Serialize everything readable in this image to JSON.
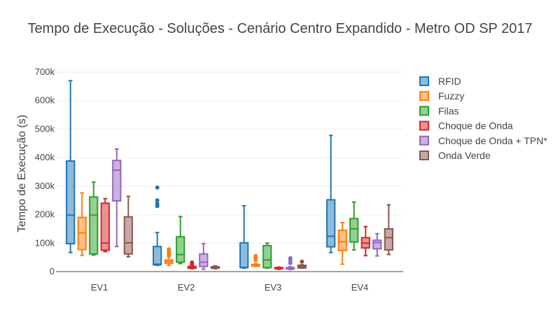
{
  "chart_data": {
    "type": "box",
    "title": "Tempo de Execução - Soluções - Cenário Centro Expandido - Metro OD SP 2017",
    "xlabel": "",
    "ylabel": "Tempo de Execução (s)",
    "ylim": [
      0,
      700000
    ],
    "yticks": [
      0,
      100000,
      200000,
      300000,
      400000,
      500000,
      600000,
      700000
    ],
    "ytick_labels": [
      "0",
      "100k",
      "200k",
      "300k",
      "400k",
      "500k",
      "600k",
      "700k"
    ],
    "grid": true,
    "legend_position": "right",
    "categories": [
      "EV1",
      "EV2",
      "EV3",
      "EV4"
    ],
    "series": [
      {
        "name": "RFID",
        "color": "#1f77b4",
        "boxes": [
          {
            "min": 67000,
            "q1": 98000,
            "median": 198000,
            "q3": 388000,
            "max": 670000,
            "outliers": []
          },
          {
            "min": 22000,
            "q1": 24000,
            "median": 26000,
            "q3": 88000,
            "max": 137000,
            "outliers": [
              295000,
              250000,
              238000,
              230000
            ]
          },
          {
            "min": 12000,
            "q1": 14000,
            "median": 15000,
            "q3": 101000,
            "max": 231000,
            "outliers": []
          },
          {
            "min": 67000,
            "q1": 87000,
            "median": 124000,
            "q3": 252000,
            "max": 478000,
            "outliers": []
          }
        ]
      },
      {
        "name": "Fuzzy",
        "color": "#ff7f0e",
        "boxes": [
          {
            "min": 57000,
            "q1": 77000,
            "median": 136000,
            "q3": 190000,
            "max": 276000,
            "outliers": []
          },
          {
            "min": 22000,
            "q1": 29000,
            "median": 35000,
            "q3": 41000,
            "max": 52000,
            "outliers": [
              78000,
              72000,
              65000,
              60000
            ]
          },
          {
            "min": 18000,
            "q1": 19000,
            "median": 21000,
            "q3": 25000,
            "max": 28000,
            "outliers": [
              55000,
              48000,
              40000
            ]
          },
          {
            "min": 26000,
            "q1": 74000,
            "median": 105000,
            "q3": 145000,
            "max": 172000,
            "outliers": []
          }
        ]
      },
      {
        "name": "Filas",
        "color": "#2ca02c",
        "boxes": [
          {
            "min": 58000,
            "q1": 62000,
            "median": 198000,
            "q3": 262000,
            "max": 314000,
            "outliers": []
          },
          {
            "min": 28000,
            "q1": 33000,
            "median": 60000,
            "q3": 122000,
            "max": 193000,
            "outliers": []
          },
          {
            "min": 12000,
            "q1": 14000,
            "median": 41000,
            "q3": 91000,
            "max": 100000,
            "outliers": []
          },
          {
            "min": 76000,
            "q1": 104000,
            "median": 150000,
            "q3": 186000,
            "max": 244000,
            "outliers": []
          }
        ]
      },
      {
        "name": "Choque de Onda",
        "color": "#d62728",
        "boxes": [
          {
            "min": 70000,
            "q1": 75000,
            "median": 100000,
            "q3": 240000,
            "max": 256000,
            "outliers": []
          },
          {
            "min": 10000,
            "q1": 12000,
            "median": 14000,
            "q3": 18000,
            "max": 22000,
            "outliers": [
              32000,
              26000
            ]
          },
          {
            "min": 8000,
            "q1": 10000,
            "median": 12000,
            "q3": 14000,
            "max": 16000,
            "outliers": []
          },
          {
            "min": 56000,
            "q1": 83000,
            "median": 100000,
            "q3": 119000,
            "max": 158000,
            "outliers": []
          }
        ]
      },
      {
        "name": "Choque de Onda + TPN*",
        "color": "#9467bd",
        "boxes": [
          {
            "min": 88000,
            "q1": 248000,
            "median": 356000,
            "q3": 390000,
            "max": 430000,
            "outliers": []
          },
          {
            "min": 8000,
            "q1": 18000,
            "median": 33000,
            "q3": 62000,
            "max": 98000,
            "outliers": []
          },
          {
            "min": 7000,
            "q1": 9000,
            "median": 12000,
            "q3": 14000,
            "max": 17000,
            "outliers": [
              47000,
              40000,
              30000
            ]
          },
          {
            "min": 55000,
            "q1": 80000,
            "median": 102000,
            "q3": 110000,
            "max": 133000,
            "outliers": []
          }
        ]
      },
      {
        "name": "Onda Verde",
        "color": "#8c564b",
        "boxes": [
          {
            "min": 52000,
            "q1": 62000,
            "median": 101000,
            "q3": 192000,
            "max": 264000,
            "outliers": []
          },
          {
            "min": 10000,
            "q1": 12000,
            "median": 14000,
            "q3": 17000,
            "max": 20000,
            "outliers": []
          },
          {
            "min": 12000,
            "q1": 13000,
            "median": 17000,
            "q3": 22000,
            "max": 24000,
            "outliers": [
              35000
            ]
          },
          {
            "min": 60000,
            "q1": 76000,
            "median": 119000,
            "q3": 150000,
            "max": 234000,
            "outliers": []
          }
        ]
      }
    ]
  }
}
